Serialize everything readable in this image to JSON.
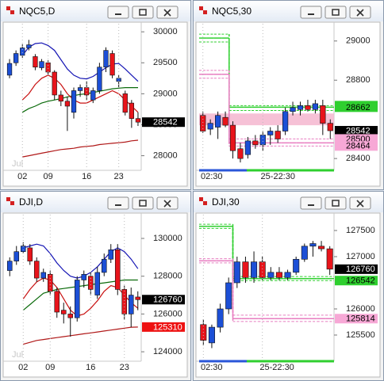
{
  "chart_data": [
    {
      "type": "candlestick",
      "title": "NQC5,D",
      "period_label": "Jul",
      "categories": [
        null,
        null,
        "02",
        null,
        null,
        null,
        "09",
        null,
        null,
        null,
        null,
        null,
        "16",
        null,
        null,
        null,
        null,
        "23",
        null,
        null,
        null
      ],
      "open": [
        29300,
        29500,
        29620,
        29740,
        29600,
        29420,
        29500,
        29350,
        28980,
        28880,
        28700,
        29050,
        29100,
        28900,
        29050,
        29430,
        29650,
        29200,
        29000,
        28850,
        28600
      ],
      "high": [
        29560,
        29700,
        29800,
        29870,
        29640,
        29560,
        29540,
        29380,
        29050,
        28950,
        29100,
        29150,
        29200,
        29100,
        29500,
        29750,
        29700,
        29300,
        29050,
        28900,
        28700
      ],
      "low": [
        29250,
        29450,
        29580,
        29700,
        29380,
        29380,
        29300,
        28900,
        28800,
        28400,
        28600,
        28950,
        28900,
        28850,
        29000,
        29350,
        29250,
        29100,
        28650,
        28450,
        28480
      ],
      "close": [
        29490,
        29650,
        29740,
        29790,
        29430,
        29520,
        29350,
        28980,
        28880,
        28800,
        29050,
        29100,
        28980,
        29050,
        29430,
        29700,
        29300,
        29250,
        28700,
        28600,
        28542
      ],
      "up_color": "#1c4fd6",
      "down_color": "#e8141b",
      "series": [
        {
          "color": "#1414b4",
          "values": [
            null,
            null,
            29620,
            29750,
            29810,
            29820,
            29780,
            29700,
            29550,
            29400,
            29300,
            29250,
            29240,
            29280,
            29350,
            29420,
            29480,
            29490,
            29400,
            29300,
            29200
          ]
        },
        {
          "color": "#0a6a0a",
          "values": [
            null,
            null,
            28700,
            28760,
            28800,
            28850,
            28880,
            28900,
            28920,
            28950,
            28970,
            28990,
            29000,
            29020,
            29040,
            29060,
            29080,
            29090,
            29100,
            29100,
            29100
          ]
        },
        {
          "color": "#c81010",
          "values": [
            null,
            null,
            28900,
            29000,
            29150,
            29250,
            29300,
            29250,
            29150,
            29000,
            28900,
            28850,
            28850,
            28900,
            28950,
            29000,
            29050,
            29000,
            28900,
            28800,
            28700
          ]
        },
        {
          "color": "#b01818",
          "values": [
            null,
            null,
            27980,
            28000,
            28020,
            28040,
            28060,
            28080,
            28100,
            28110,
            28120,
            28140,
            28150,
            28160,
            28180,
            28190,
            28200,
            28210,
            28220,
            28240,
            28250
          ]
        }
      ],
      "ylim": [
        27790,
        30130
      ],
      "yticks": [
        28000,
        28500,
        29000,
        29500,
        30000
      ],
      "price_tags": [
        {
          "value": 28542,
          "color": "#000000",
          "text_color": "#ffffff"
        }
      ]
    },
    {
      "type": "candlestick",
      "title": "NQC5,30",
      "step_lines": true,
      "categories": [
        "02:30",
        null,
        null,
        null,
        null,
        null,
        null,
        null,
        "25-22:30",
        null,
        null,
        null,
        null,
        null,
        null,
        null,
        null,
        null
      ],
      "open": [
        28620,
        28550,
        28560,
        28610,
        28570,
        28450,
        28420,
        28490,
        28470,
        28520,
        28540,
        28540,
        28640,
        28650,
        28670,
        28650,
        28670,
        28580
      ],
      "high": [
        28640,
        28600,
        28640,
        28640,
        28590,
        28480,
        28510,
        28520,
        28540,
        28560,
        28570,
        28660,
        28690,
        28690,
        28700,
        28700,
        28700,
        28600
      ],
      "low": [
        28530,
        28520,
        28500,
        28560,
        28400,
        28380,
        28400,
        28450,
        28440,
        28470,
        28480,
        28520,
        28620,
        28620,
        28640,
        28630,
        28520,
        28500
      ],
      "close": [
        28540,
        28580,
        28620,
        28570,
        28440,
        28400,
        28490,
        28470,
        28520,
        28540,
        28500,
        28640,
        28660,
        28670,
        28650,
        28680,
        28580,
        28542
      ],
      "up_color": "#1c4fd6",
      "down_color": "#e8141b",
      "band": {
        "low": 28570,
        "high": 28630,
        "color": "#f4b6cf"
      },
      "series": [
        {
          "color": "#2fcf2f",
          "values": [
            29015,
            29015,
            29015,
            29015,
            28662,
            28662,
            28662,
            28662,
            28662,
            28662,
            28662,
            28662,
            28662,
            28662,
            28662,
            28662,
            28662,
            28662
          ]
        },
        {
          "color": "#2fcf2f",
          "dashed": true,
          "values": [
            29035,
            29035,
            29035,
            29035,
            28670,
            28670,
            28670,
            28670,
            28670,
            28670,
            28670,
            28670,
            28670,
            28670,
            28670,
            28670,
            28670,
            28670
          ]
        },
        {
          "color": "#2fcf2f",
          "dashed": true,
          "values": [
            28995,
            28995,
            28995,
            28995,
            28645,
            28645,
            28645,
            28645,
            28645,
            28645,
            28645,
            28645,
            28645,
            28645,
            28645,
            28645,
            28645,
            28645
          ]
        },
        {
          "color": "#e87cc0",
          "values": [
            28830,
            28830,
            28830,
            28830,
            28480,
            28480,
            28480,
            28480,
            28480,
            28480,
            28480,
            28480,
            28480,
            28480,
            28480,
            28480,
            28480,
            28480
          ]
        },
        {
          "color": "#e87cc0",
          "dashed": true,
          "values": [
            28850,
            28850,
            28850,
            28850,
            28500,
            28500,
            28500,
            28500,
            28500,
            28500,
            28500,
            28500,
            28500,
            28500,
            28500,
            28500,
            28500,
            28500
          ]
        },
        {
          "color": "#e87cc0",
          "dashed": true,
          "values": [
            28810,
            28810,
            28810,
            28810,
            28464,
            28464,
            28464,
            28464,
            28464,
            28464,
            28464,
            28464,
            28464,
            28464,
            28464,
            28464,
            28464,
            28464
          ]
        }
      ],
      "ylim": [
        28348,
        29088
      ],
      "yticks": [
        28400,
        28800,
        29000
      ],
      "price_tags": [
        {
          "value": 28670,
          "color": "#2fcf2f",
          "text_color": "#000000"
        },
        {
          "value": 28662,
          "color": "#2fcf2f",
          "text_color": "#000000"
        },
        {
          "value": 28542,
          "color": "#000000",
          "text_color": "#ffffff"
        },
        {
          "value": 28500,
          "color": "#f7a8d6",
          "text_color": "#000000"
        },
        {
          "value": 28464,
          "color": "#f7a8d6",
          "text_color": "#000000"
        }
      ]
    },
    {
      "type": "candlestick",
      "title": "DJI,D",
      "period_label": "Jul",
      "categories": [
        null,
        null,
        "02",
        null,
        null,
        null,
        "09",
        null,
        null,
        null,
        null,
        null,
        "16",
        null,
        null,
        null,
        null,
        "23",
        null,
        null
      ],
      "open": [
        128300,
        128800,
        129300,
        129500,
        128800,
        127900,
        128100,
        127200,
        126200,
        126000,
        125800,
        127800,
        128000,
        127000,
        128200,
        128900,
        129400,
        127300,
        126000,
        126900
      ],
      "high": [
        129000,
        129600,
        129800,
        129700,
        129000,
        128400,
        128300,
        127400,
        126600,
        126400,
        128000,
        128300,
        128200,
        128500,
        129200,
        129700,
        129700,
        127500,
        127400,
        127200
      ],
      "low": [
        128000,
        128600,
        129200,
        128600,
        127700,
        127700,
        127000,
        125800,
        125500,
        124800,
        125600,
        127400,
        127000,
        126800,
        128000,
        128700,
        127000,
        125700,
        125300,
        126200
      ],
      "close": [
        128800,
        129300,
        129600,
        128800,
        127900,
        128200,
        127200,
        126100,
        126000,
        125800,
        127800,
        128100,
        127300,
        128200,
        128900,
        129400,
        127300,
        126000,
        127000,
        126760
      ],
      "up_color": "#1c4fd6",
      "down_color": "#e8141b",
      "series": [
        {
          "color": "#1414b4",
          "values": [
            null,
            null,
            129500,
            129600,
            129700,
            129600,
            129200,
            128700,
            128300,
            128000,
            127900,
            128000,
            128200,
            128500,
            128900,
            129300,
            129500,
            129300,
            128900,
            128400
          ]
        },
        {
          "color": "#0a6a0a",
          "values": [
            null,
            null,
            126200,
            126500,
            126800,
            127100,
            127200,
            127300,
            127350,
            127400,
            127450,
            127500,
            127550,
            127600,
            127650,
            127700,
            127750,
            127800,
            127800,
            127800
          ]
        },
        {
          "color": "#c81010",
          "values": [
            null,
            null,
            126800,
            127300,
            127700,
            127900,
            127800,
            127400,
            126800,
            126200,
            125900,
            126000,
            126300,
            126700,
            127200,
            127500,
            127400,
            127000,
            126600,
            126300
          ]
        },
        {
          "color": "#b01818",
          "values": [
            null,
            null,
            124400,
            124500,
            124600,
            124650,
            124700,
            124750,
            124800,
            124850,
            124900,
            124950,
            125000,
            125050,
            125100,
            125150,
            125200,
            125250,
            125300,
            125310
          ]
        }
      ],
      "ylim": [
        123585,
        131258
      ],
      "yticks": [
        124000,
        126000,
        128000,
        130000
      ],
      "price_tags": [
        {
          "value": 126760,
          "color": "#000000",
          "text_color": "#ffffff"
        },
        {
          "value": 125310,
          "color": "#ee1111",
          "text_color": "#ffffff"
        }
      ]
    },
    {
      "type": "candlestick",
      "title": "DJI,30",
      "step_lines": true,
      "categories": [
        "02:30",
        null,
        null,
        null,
        null,
        null,
        null,
        "25-22:30",
        null,
        null,
        null,
        null,
        null,
        null,
        null,
        null
      ],
      "open": [
        125700,
        125350,
        125650,
        126000,
        126500,
        126900,
        126600,
        126900,
        126600,
        126700,
        126600,
        126700,
        126950,
        127200,
        127200,
        127150
      ],
      "high": [
        125800,
        125700,
        126100,
        126600,
        127000,
        127000,
        127100,
        127000,
        126800,
        126800,
        126750,
        127000,
        127250,
        127300,
        127300,
        127200
      ],
      "low": [
        125300,
        125250,
        125550,
        125900,
        126400,
        126500,
        126500,
        126550,
        126550,
        126550,
        126550,
        126650,
        126900,
        127000,
        127100,
        126650
      ],
      "close": [
        125400,
        125650,
        126000,
        126500,
        126900,
        126600,
        126900,
        126600,
        126700,
        126600,
        126700,
        126950,
        127200,
        127250,
        127150,
        126760
      ],
      "up_color": "#1c4fd6",
      "down_color": "#e8141b",
      "series": [
        {
          "color": "#2fcf2f",
          "values": [
            127580,
            127580,
            127580,
            127580,
            126580,
            126580,
            126580,
            126580,
            126580,
            126580,
            126580,
            126580,
            126580,
            126580,
            126580,
            126580
          ]
        },
        {
          "color": "#2fcf2f",
          "dashed": true,
          "values": [
            127620,
            127620,
            127620,
            127620,
            126620,
            126620,
            126620,
            126620,
            126620,
            126620,
            126620,
            126620,
            126620,
            126620,
            126620,
            126620
          ]
        },
        {
          "color": "#2fcf2f",
          "dashed": true,
          "values": [
            127540,
            127540,
            127540,
            127540,
            126542,
            126542,
            126542,
            126542,
            126542,
            126542,
            126542,
            126542,
            126542,
            126542,
            126542,
            126542
          ]
        },
        {
          "color": "#e87cc0",
          "values": [
            126920,
            126920,
            126920,
            126920,
            125814,
            125814,
            125814,
            125814,
            125814,
            125814,
            125814,
            125814,
            125814,
            125814,
            125814,
            125814
          ]
        },
        {
          "color": "#e87cc0",
          "dashed": true,
          "values": [
            126960,
            126960,
            126960,
            126960,
            125880,
            125880,
            125880,
            125880,
            125880,
            125880,
            125880,
            125880,
            125880,
            125880,
            125880,
            125880
          ]
        },
        {
          "color": "#e87cc0",
          "dashed": true,
          "values": [
            126880,
            126880,
            126880,
            126880,
            125760,
            125760,
            125760,
            125760,
            125760,
            125760,
            125760,
            125760,
            125760,
            125760,
            125760,
            125760
          ]
        }
      ],
      "ylim": [
        125030,
        127803
      ],
      "yticks": [
        125500,
        126000,
        127000,
        127500
      ],
      "price_tags": [
        {
          "value": 126760,
          "color": "#000000",
          "text_color": "#ffffff"
        },
        {
          "value": 126542,
          "color": "#2fcf2f",
          "text_color": "#000000"
        },
        {
          "value": 125814,
          "color": "#f7a8d6",
          "text_color": "#000000"
        }
      ]
    }
  ]
}
